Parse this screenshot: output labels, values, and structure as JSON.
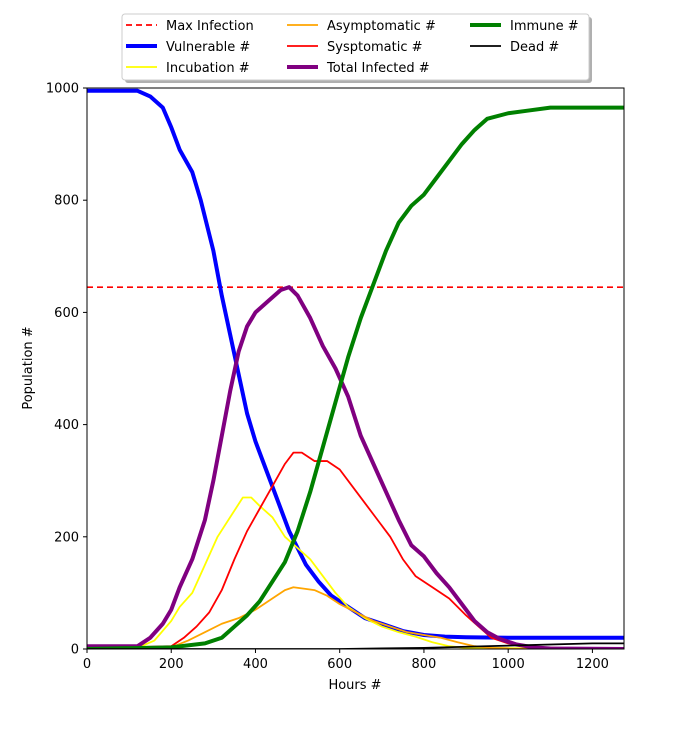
{
  "chart_data": {
    "type": "line",
    "title": "",
    "xlabel": "Hours #",
    "ylabel": "Population #",
    "xlim": [
      0,
      1275
    ],
    "ylim": [
      0,
      1000
    ],
    "xticks": [
      0,
      200,
      400,
      600,
      800,
      1000,
      1200
    ],
    "yticks": [
      0,
      200,
      400,
      600,
      800,
      1000
    ],
    "grid": false,
    "legend_position": "top-center",
    "reference_lines": [
      {
        "name": "Max Infection",
        "y": 645,
        "color": "#ff0000",
        "style": "dashed"
      }
    ],
    "series": [
      {
        "name": "Vulnerable #",
        "color": "#0000ff",
        "width": "thick",
        "points": [
          [
            0,
            995
          ],
          [
            120,
            995
          ],
          [
            150,
            985
          ],
          [
            180,
            965
          ],
          [
            200,
            930
          ],
          [
            220,
            890
          ],
          [
            250,
            850
          ],
          [
            270,
            800
          ],
          [
            300,
            710
          ],
          [
            320,
            630
          ],
          [
            340,
            560
          ],
          [
            360,
            490
          ],
          [
            380,
            420
          ],
          [
            400,
            370
          ],
          [
            420,
            330
          ],
          [
            440,
            290
          ],
          [
            460,
            250
          ],
          [
            480,
            210
          ],
          [
            500,
            180
          ],
          [
            520,
            150
          ],
          [
            550,
            120
          ],
          [
            580,
            95
          ],
          [
            620,
            75
          ],
          [
            660,
            55
          ],
          [
            700,
            45
          ],
          [
            750,
            32
          ],
          [
            800,
            25
          ],
          [
            850,
            22
          ],
          [
            900,
            21
          ],
          [
            1000,
            20
          ],
          [
            1275,
            20
          ]
        ]
      },
      {
        "name": "Incubation #",
        "color": "#ffff00",
        "width": "normal",
        "points": [
          [
            0,
            2
          ],
          [
            120,
            2
          ],
          [
            160,
            15
          ],
          [
            200,
            50
          ],
          [
            220,
            75
          ],
          [
            250,
            100
          ],
          [
            280,
            150
          ],
          [
            310,
            200
          ],
          [
            340,
            235
          ],
          [
            370,
            270
          ],
          [
            390,
            270
          ],
          [
            410,
            255
          ],
          [
            440,
            235
          ],
          [
            470,
            200
          ],
          [
            500,
            180
          ],
          [
            530,
            160
          ],
          [
            560,
            130
          ],
          [
            590,
            100
          ],
          [
            620,
            75
          ],
          [
            660,
            55
          ],
          [
            700,
            40
          ],
          [
            740,
            30
          ],
          [
            780,
            22
          ],
          [
            820,
            12
          ],
          [
            860,
            5
          ],
          [
            900,
            2
          ],
          [
            1275,
            0
          ]
        ]
      },
      {
        "name": "Asymptomatic #",
        "color": "#ffa500",
        "width": "normal",
        "points": [
          [
            0,
            1
          ],
          [
            200,
            3
          ],
          [
            240,
            15
          ],
          [
            280,
            30
          ],
          [
            320,
            45
          ],
          [
            360,
            55
          ],
          [
            400,
            70
          ],
          [
            440,
            90
          ],
          [
            470,
            105
          ],
          [
            490,
            110
          ],
          [
            510,
            108
          ],
          [
            540,
            105
          ],
          [
            570,
            95
          ],
          [
            600,
            80
          ],
          [
            640,
            65
          ],
          [
            680,
            50
          ],
          [
            720,
            40
          ],
          [
            760,
            30
          ],
          [
            800,
            25
          ],
          [
            840,
            20
          ],
          [
            880,
            12
          ],
          [
            920,
            5
          ],
          [
            960,
            2
          ],
          [
            1000,
            1
          ],
          [
            1275,
            0
          ]
        ]
      },
      {
        "name": "Sysptomatic #",
        "color": "#ff0000",
        "width": "normal",
        "points": [
          [
            0,
            1
          ],
          [
            200,
            5
          ],
          [
            230,
            20
          ],
          [
            260,
            40
          ],
          [
            290,
            65
          ],
          [
            320,
            105
          ],
          [
            350,
            160
          ],
          [
            380,
            210
          ],
          [
            410,
            250
          ],
          [
            440,
            290
          ],
          [
            470,
            330
          ],
          [
            490,
            350
          ],
          [
            510,
            350
          ],
          [
            540,
            335
          ],
          [
            570,
            335
          ],
          [
            600,
            320
          ],
          [
            640,
            280
          ],
          [
            680,
            240
          ],
          [
            720,
            200
          ],
          [
            750,
            160
          ],
          [
            780,
            130
          ],
          [
            820,
            110
          ],
          [
            860,
            90
          ],
          [
            900,
            60
          ],
          [
            930,
            40
          ],
          [
            960,
            20
          ],
          [
            1000,
            10
          ],
          [
            1050,
            3
          ],
          [
            1275,
            0
          ]
        ]
      },
      {
        "name": "Total Infected #",
        "color": "#800080",
        "width": "thick",
        "points": [
          [
            0,
            5
          ],
          [
            120,
            5
          ],
          [
            150,
            20
          ],
          [
            180,
            45
          ],
          [
            200,
            70
          ],
          [
            220,
            110
          ],
          [
            250,
            160
          ],
          [
            280,
            230
          ],
          [
            300,
            300
          ],
          [
            320,
            380
          ],
          [
            340,
            460
          ],
          [
            360,
            530
          ],
          [
            380,
            575
          ],
          [
            400,
            600
          ],
          [
            430,
            620
          ],
          [
            460,
            640
          ],
          [
            480,
            645
          ],
          [
            500,
            630
          ],
          [
            530,
            590
          ],
          [
            560,
            540
          ],
          [
            590,
            500
          ],
          [
            620,
            450
          ],
          [
            650,
            380
          ],
          [
            680,
            330
          ],
          [
            710,
            280
          ],
          [
            740,
            230
          ],
          [
            770,
            185
          ],
          [
            800,
            165
          ],
          [
            830,
            135
          ],
          [
            860,
            110
          ],
          [
            890,
            80
          ],
          [
            920,
            50
          ],
          [
            950,
            30
          ],
          [
            980,
            18
          ],
          [
            1020,
            8
          ],
          [
            1060,
            3
          ],
          [
            1100,
            1
          ],
          [
            1275,
            0
          ]
        ]
      },
      {
        "name": "Immune #",
        "color": "#008000",
        "width": "thick",
        "points": [
          [
            0,
            0
          ],
          [
            200,
            3
          ],
          [
            280,
            10
          ],
          [
            320,
            20
          ],
          [
            350,
            40
          ],
          [
            380,
            60
          ],
          [
            410,
            85
          ],
          [
            440,
            120
          ],
          [
            470,
            155
          ],
          [
            500,
            210
          ],
          [
            530,
            280
          ],
          [
            560,
            360
          ],
          [
            590,
            440
          ],
          [
            620,
            520
          ],
          [
            650,
            590
          ],
          [
            680,
            650
          ],
          [
            710,
            710
          ],
          [
            740,
            760
          ],
          [
            770,
            790
          ],
          [
            800,
            810
          ],
          [
            830,
            840
          ],
          [
            860,
            870
          ],
          [
            890,
            900
          ],
          [
            920,
            925
          ],
          [
            950,
            945
          ],
          [
            1000,
            955
          ],
          [
            1050,
            960
          ],
          [
            1100,
            965
          ],
          [
            1275,
            965
          ]
        ]
      },
      {
        "name": "Dead #",
        "color": "#000000",
        "width": "normal",
        "points": [
          [
            0,
            0
          ],
          [
            600,
            0
          ],
          [
            700,
            1
          ],
          [
            800,
            2
          ],
          [
            900,
            4
          ],
          [
            1000,
            6
          ],
          [
            1100,
            8
          ],
          [
            1200,
            10
          ],
          [
            1275,
            10
          ]
        ]
      }
    ],
    "legend": [
      {
        "name": "Max Infection",
        "color": "#ff0000",
        "style": "dashed",
        "width": "normal"
      },
      {
        "name": "Vulnerable #",
        "color": "#0000ff",
        "style": "solid",
        "width": "thick"
      },
      {
        "name": "Incubation #",
        "color": "#ffff00",
        "style": "solid",
        "width": "normal"
      },
      {
        "name": "Asymptomatic #",
        "color": "#ffa500",
        "style": "solid",
        "width": "normal"
      },
      {
        "name": "Sysptomatic #",
        "color": "#ff0000",
        "style": "solid",
        "width": "normal"
      },
      {
        "name": "Total Infected #",
        "color": "#800080",
        "style": "solid",
        "width": "thick"
      },
      {
        "name": "Immune #",
        "color": "#008000",
        "style": "solid",
        "width": "thick"
      },
      {
        "name": "Dead #",
        "color": "#000000",
        "style": "solid",
        "width": "normal"
      }
    ]
  }
}
